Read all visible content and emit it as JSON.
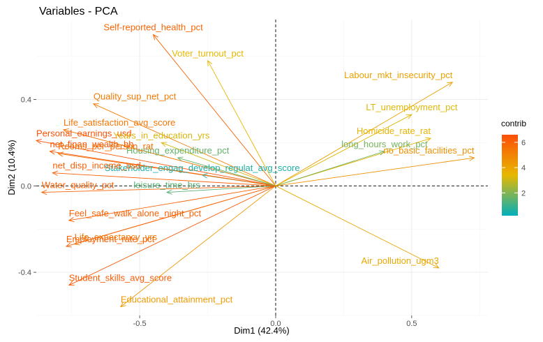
{
  "chart_data": {
    "type": "scatter",
    "subtype": "pca-variable-loadings",
    "title": "Variables - PCA",
    "xlabel": "Dim1 (42.4%)",
    "ylabel": "Dim2 (10.4%)",
    "xlim": [
      -0.88,
      0.78
    ],
    "ylim": [
      -0.6,
      0.77
    ],
    "x_ticks": [
      -0.5,
      0.0,
      0.5
    ],
    "x_tick_labels": [
      "-0.5",
      "0.0",
      "0.5"
    ],
    "y_ticks": [
      -0.4,
      0.0,
      0.4
    ],
    "y_tick_labels": [
      "-0.4",
      "0.0",
      "0.4"
    ],
    "grid": true,
    "reference_lines": [
      0,
      0
    ],
    "legend": {
      "title": "contrib",
      "position": "right",
      "min": 0.2,
      "max": 6.6,
      "ticks": [
        2,
        4,
        6
      ],
      "tick_labels": [
        "2",
        "4",
        "6"
      ],
      "colors": [
        "#00AFBB",
        "#E7B800",
        "#FC4E07"
      ]
    },
    "points": [
      {
        "name": "Self-reported_health_pct",
        "x": -0.45,
        "y": 0.7,
        "contrib": 5.9
      },
      {
        "name": "Voter_turnout_pct",
        "x": -0.25,
        "y": 0.58,
        "contrib": 3.4
      },
      {
        "name": "Labour_mkt_insecurity_pct",
        "x": 0.65,
        "y": 0.48,
        "contrib": 4.1
      },
      {
        "name": "Quality_sup_net_pct",
        "x": -0.67,
        "y": 0.38,
        "contrib": 5.2
      },
      {
        "name": "LT_unemployment_pct",
        "x": 0.5,
        "y": 0.33,
        "contrib": 3.3
      },
      {
        "name": "Life_satisfaction_avg_score",
        "x": -0.78,
        "y": 0.26,
        "contrib": 5.4
      },
      {
        "name": "Homicide_rate_rat",
        "x": 0.57,
        "y": 0.22,
        "contrib": 3.5
      },
      {
        "name": "Personal_earnings_usd",
        "x": -0.88,
        "y": 0.21,
        "contrib": 6.5
      },
      {
        "name": "Years_in_education_yrs",
        "x": -0.42,
        "y": 0.2,
        "contrib": 3.2
      },
      {
        "name": "net_finan_wealth_hh",
        "x": -0.83,
        "y": 0.16,
        "contrib": 6.3
      },
      {
        "name": "Housing_expenditure_pct",
        "x": -0.36,
        "y": 0.13,
        "contrib": 1.6
      },
      {
        "name": "long_hours_work_pct",
        "x": 0.4,
        "y": 0.16,
        "contrib": 1.8
      },
      {
        "name": "no_basic_facilities_pct",
        "x": 0.73,
        "y": 0.13,
        "contrib": 4.6
      },
      {
        "name": "Stakeholder_engag_develop_regulat_avg_score",
        "x": -0.27,
        "y": 0.05,
        "contrib": 0.6
      },
      {
        "name": "Rooms_per_person_rat",
        "x": -0.8,
        "y": 0.15,
        "contrib": 5.6
      },
      {
        "name": "net_disp_income_usd",
        "x": -0.82,
        "y": 0.06,
        "contrib": 6.1
      },
      {
        "name": "Water_quality_pct",
        "x": -0.86,
        "y": -0.03,
        "contrib": 6.0
      },
      {
        "name": "leisure_time_hrs",
        "x": -0.4,
        "y": -0.03,
        "contrib": 1.4
      },
      {
        "name": "Feel_safe_walk_alone_night_pct",
        "x": -0.76,
        "y": -0.16,
        "contrib": 6.0
      },
      {
        "name": "Life_expectancy_yrs",
        "x": -0.74,
        "y": -0.27,
        "contrib": 5.3
      },
      {
        "name": "Employment_rate_pct",
        "x": -0.77,
        "y": -0.28,
        "contrib": 6.0
      },
      {
        "name": "Air_pollution_ugm3",
        "x": 0.6,
        "y": -0.38,
        "contrib": 3.9
      },
      {
        "name": "Student_skills_avg_score",
        "x": -0.76,
        "y": -0.46,
        "contrib": 6.2
      },
      {
        "name": "Educational_attainment_pct",
        "x": -0.57,
        "y": -0.56,
        "contrib": 4.3
      }
    ]
  }
}
